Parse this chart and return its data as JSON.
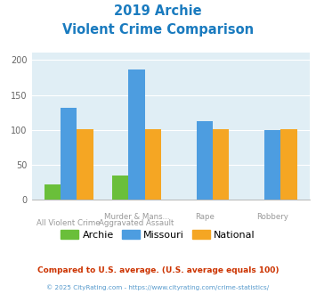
{
  "title_line1": "2019 Archie",
  "title_line2": "Violent Crime Comparison",
  "archie": [
    22,
    35,
    0,
    0
  ],
  "missouri": [
    131,
    186,
    112,
    100
  ],
  "national": [
    101,
    101,
    101,
    101
  ],
  "archie_color": "#6abf3a",
  "missouri_color": "#4d9de0",
  "national_color": "#f5a623",
  "bg_color": "#e0eef5",
  "title_color": "#1a7bbf",
  "ylim": [
    0,
    210
  ],
  "yticks": [
    0,
    50,
    100,
    150,
    200
  ],
  "cat_labels_top": [
    "",
    "Murder & Mans...",
    "Rape",
    "Robbery"
  ],
  "cat_labels_bot": [
    "All Violent Crime",
    "Aggravated Assault",
    "",
    ""
  ],
  "legend_labels": [
    "Archie",
    "Missouri",
    "National"
  ],
  "footnote1": "Compared to U.S. average. (U.S. average equals 100)",
  "footnote2": "© 2025 CityRating.com - https://www.cityrating.com/crime-statistics/",
  "footnote1_color": "#cc3300",
  "footnote2_color": "#5599cc"
}
